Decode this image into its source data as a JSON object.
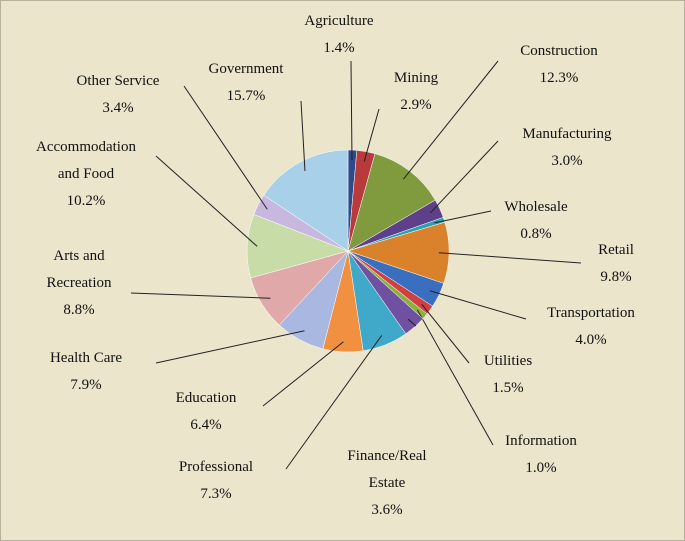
{
  "chart_data": {
    "type": "pie",
    "categories": [
      "Agriculture",
      "Mining",
      "Construction",
      "Manufacturing",
      "Wholesale",
      "Retail",
      "Transportation",
      "Utilities",
      "Information",
      "Finance/Real Estate",
      "Professional",
      "Education",
      "Health Care",
      "Arts and Recreation",
      "Accommodation and Food",
      "Other Service",
      "Government"
    ],
    "values": [
      1.4,
      2.9,
      12.3,
      3.0,
      0.8,
      9.8,
      4.0,
      1.5,
      1.0,
      3.6,
      7.3,
      6.4,
      7.9,
      8.8,
      10.2,
      3.4,
      15.7
    ],
    "value_labels": [
      "1.4%",
      "2.9%",
      "12.3%",
      "3.0%",
      "0.8%",
      "9.8%",
      "4.0%",
      "1.5%",
      "1.0%",
      "3.6%",
      "7.3%",
      "6.4%",
      "7.9%",
      "8.8%",
      "10.2%",
      "3.4%",
      "15.7%"
    ],
    "colors": [
      "#2e4a8a",
      "#b83a3a",
      "#7f9b3e",
      "#5e3f8a",
      "#2aa0b0",
      "#d9822b",
      "#3a6fc0",
      "#d04040",
      "#8ab040",
      "#7050a0",
      "#40a8c8",
      "#f09040",
      "#a8b8e0",
      "#e0a8a8",
      "#c8dca8",
      "#c8b8e0",
      "#a8d0e8"
    ]
  }
}
